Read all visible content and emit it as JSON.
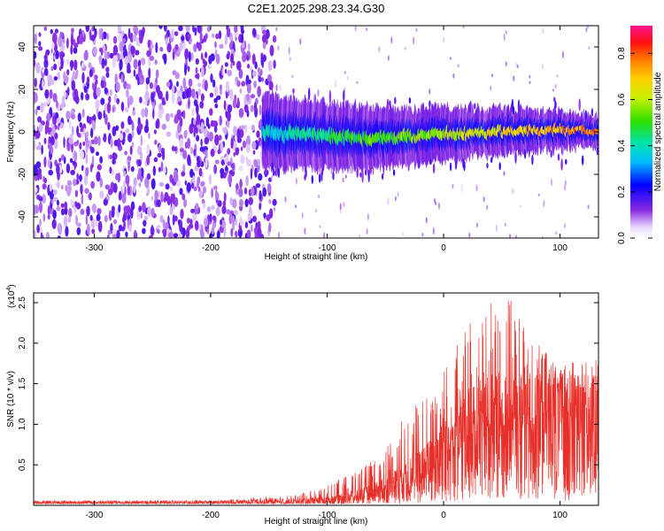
{
  "title": "C2E1.2025.298.23.34.G30",
  "colors": {
    "snr_line": "#e8302a",
    "axis": "#000000",
    "background": "#ffffff"
  },
  "chart_data": [
    {
      "id": "spectrogram",
      "type": "heatmap",
      "title": "C2E1.2025.298.23.34.G30",
      "xlabel": "Height of straight line (km)",
      "ylabel": "Frequency (Hz)",
      "xlim": [
        -352,
        133
      ],
      "ylim": [
        -50,
        50
      ],
      "xticks": [
        -300,
        -200,
        -100,
        0,
        100
      ],
      "yticks": [
        -40,
        -20,
        0,
        20,
        40
      ],
      "xtick_labels": [
        "-300",
        "-200",
        "-100",
        "0",
        "100"
      ],
      "ytick_labels": [
        "-40",
        "-20",
        "0",
        "20",
        "40"
      ],
      "noise_region_x": [
        -352,
        -145
      ],
      "signal_region_x": [
        -155,
        133
      ],
      "signal_center_frequency_hz": [
        {
          "x": -150,
          "f": 0
        },
        {
          "x": -100,
          "f": -2
        },
        {
          "x": -50,
          "f": -3
        },
        {
          "x": 0,
          "f": -1
        },
        {
          "x": 50,
          "f": 0
        },
        {
          "x": 90,
          "f": 1
        },
        {
          "x": 133,
          "f": 0
        }
      ],
      "colorbar": {
        "label": "Normalized spectral amplitude",
        "range": [
          0,
          0.92
        ],
        "ticks": [
          0.0,
          0.2,
          0.4,
          0.6,
          0.8
        ],
        "tick_labels": [
          "0.0",
          "0.2",
          "0.4",
          "0.6",
          "0.8"
        ]
      }
    },
    {
      "id": "snr",
      "type": "line",
      "xlabel": "Height of straight line (km)",
      "ylabel": "SNR (10 * v/v)",
      "y_exponent_label": "(x10",
      "y_exponent_power": "4",
      "y_exponent_close": ")",
      "xlim": [
        -352,
        133
      ],
      "ylim": [
        0,
        2.62
      ],
      "xticks": [
        -300,
        -200,
        -100,
        0,
        100
      ],
      "yticks": [
        0.5,
        1.0,
        1.5,
        2.0,
        2.5
      ],
      "xtick_labels": [
        "-300",
        "-200",
        "-100",
        "0",
        "100"
      ],
      "ytick_labels": [
        "0.5",
        "1.0",
        "1.5",
        "2.0",
        "2.5"
      ],
      "envelope": [
        {
          "x": -352,
          "mean": 0.04,
          "max": 0.06
        },
        {
          "x": -200,
          "mean": 0.04,
          "max": 0.06
        },
        {
          "x": -130,
          "mean": 0.05,
          "max": 0.12
        },
        {
          "x": -100,
          "mean": 0.08,
          "max": 0.25
        },
        {
          "x": -70,
          "mean": 0.15,
          "max": 0.45
        },
        {
          "x": -50,
          "mean": 0.25,
          "max": 0.7
        },
        {
          "x": -30,
          "mean": 0.4,
          "max": 1.2
        },
        {
          "x": -10,
          "mean": 0.6,
          "max": 1.5
        },
        {
          "x": 0,
          "mean": 0.8,
          "max": 1.8
        },
        {
          "x": 20,
          "mean": 1.0,
          "max": 2.2
        },
        {
          "x": 40,
          "mean": 1.15,
          "max": 2.55
        },
        {
          "x": 55,
          "mean": 1.2,
          "max": 2.6
        },
        {
          "x": 75,
          "mean": 1.25,
          "max": 2.1
        },
        {
          "x": 100,
          "mean": 1.25,
          "max": 1.7
        },
        {
          "x": 133,
          "mean": 1.3,
          "max": 1.6
        }
      ]
    }
  ]
}
